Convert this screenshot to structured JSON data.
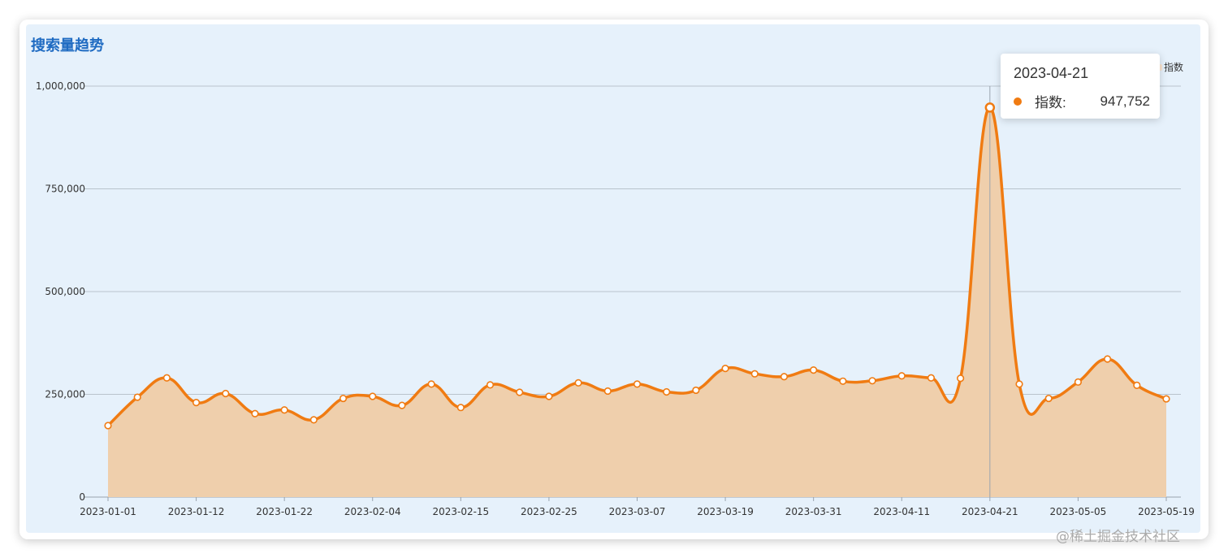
{
  "panel_title": "搜索量趋势",
  "watermark": "@稀土掘金技术社区",
  "tooltip": {
    "date": "2023-04-21",
    "series_label": "指数:",
    "value": "947,752",
    "marker_color": "#f07b12"
  },
  "colors": {
    "line": "#f07b12",
    "area": "#efcfac",
    "grid": "#b9c3cc",
    "background": "#e6f1fb",
    "title": "#1f6bc2"
  },
  "chart_data": {
    "type": "area",
    "title": "搜索量趋势",
    "xlabel": "",
    "ylabel": "",
    "legend": [
      "指数"
    ],
    "legend_position": "top-right",
    "grid": true,
    "smooth": true,
    "ylim": [
      0,
      1000000
    ],
    "y_ticks": [
      "0",
      "250,000",
      "500,000",
      "750,000",
      "1,000,000"
    ],
    "y_tick_values": [
      0,
      250000,
      500000,
      750000,
      1000000
    ],
    "x_tick_labels": [
      "2023-01-01",
      "2023-01-12",
      "2023-01-22",
      "2023-02-04",
      "2023-02-15",
      "2023-02-25",
      "2023-03-07",
      "2023-03-19",
      "2023-03-31",
      "2023-04-11",
      "2023-04-21",
      "2023-05-05",
      "2023-05-19"
    ],
    "x_tick_index": [
      0,
      3,
      6,
      9,
      12,
      15,
      18,
      21,
      24,
      27,
      30,
      33,
      36
    ],
    "highlight_index": 30,
    "series": [
      {
        "name": "指数",
        "values": [
          174000,
          243000,
          290000,
          230000,
          252000,
          203000,
          212000,
          188000,
          240000,
          245000,
          223000,
          275000,
          218000,
          273000,
          255000,
          245000,
          278000,
          258000,
          275000,
          256000,
          260000,
          313000,
          300000,
          293000,
          309000,
          282000,
          283000,
          295000,
          290000,
          289000,
          947752,
          275000,
          240000,
          280000,
          336000,
          272000,
          239000
        ]
      }
    ]
  }
}
